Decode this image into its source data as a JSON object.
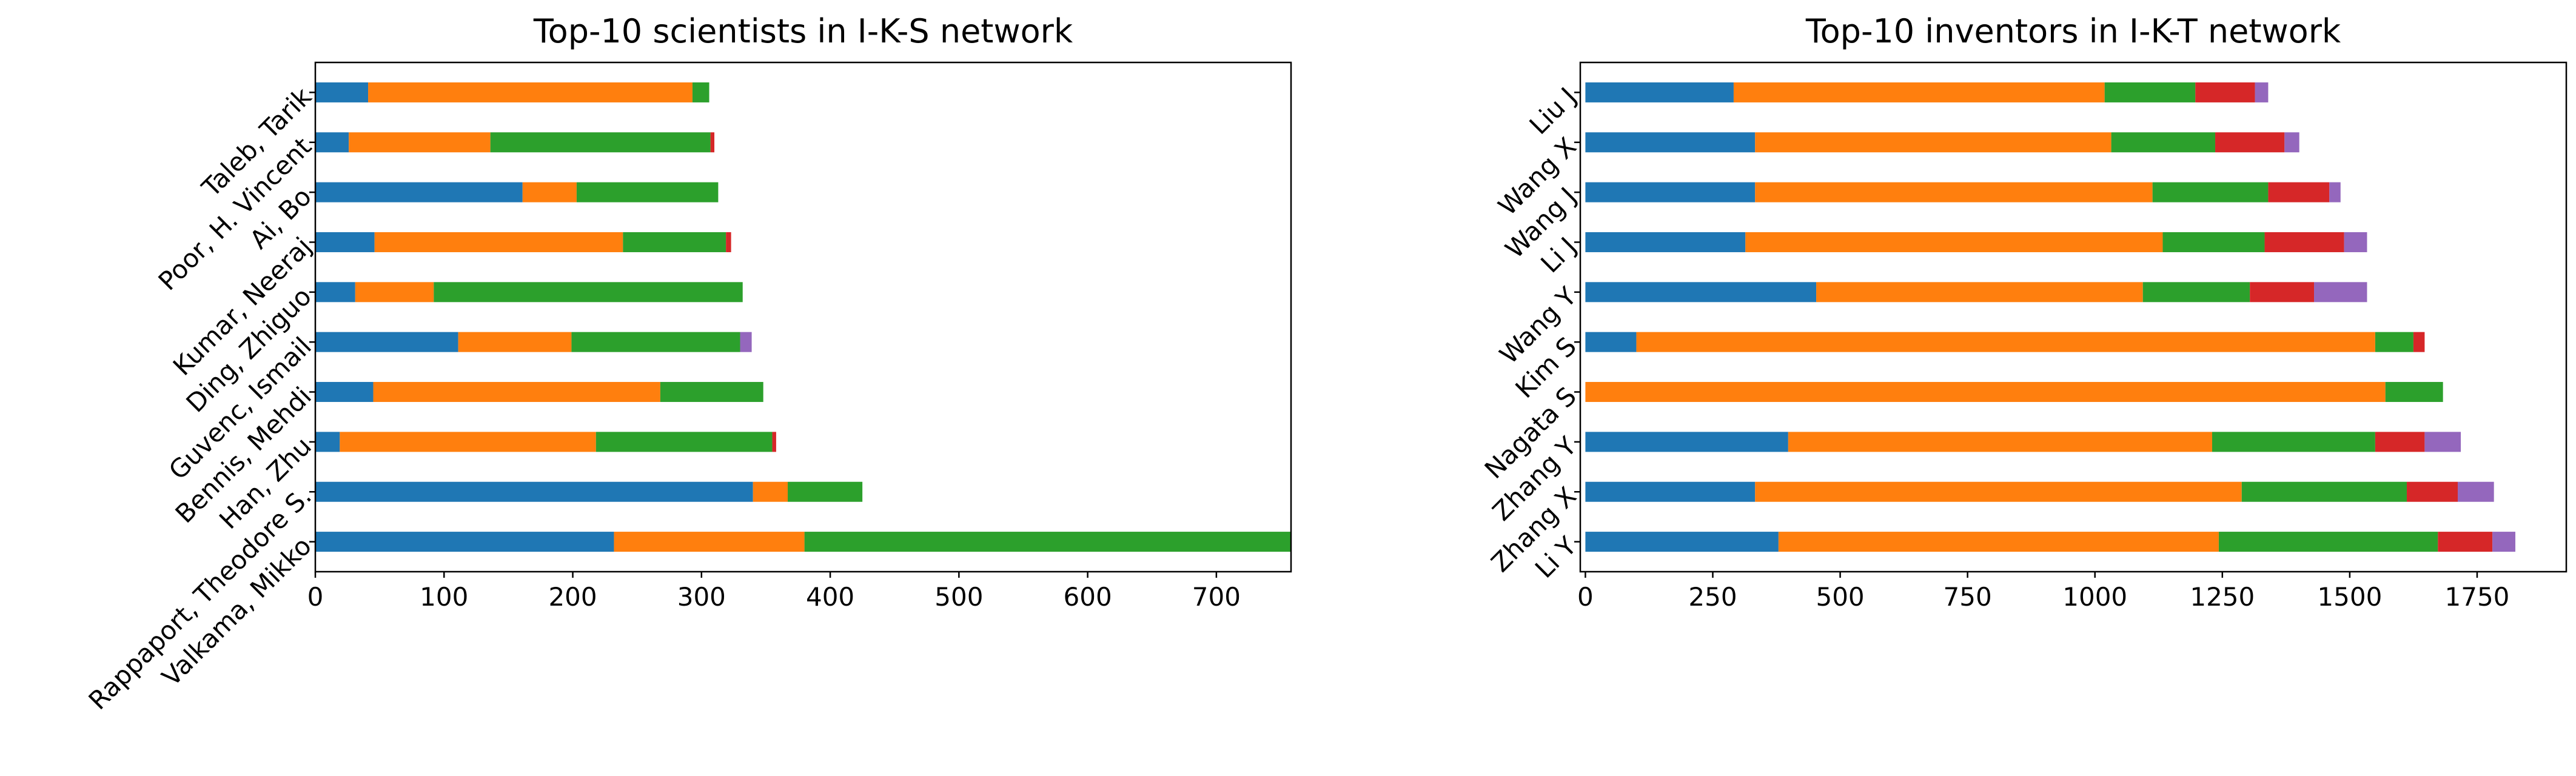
{
  "chart_data": [
    {
      "type": "bar",
      "orientation": "horizontal",
      "stacked": true,
      "title": "Top-10 scientists in I-K-S network",
      "categories": [
        "Valkama, Mikko",
        "Rappaport, Theodore S.",
        "Han, Zhu",
        "Bennis, Mehdi",
        "Guvenc, Ismail",
        "Ding, Zhiguo",
        "Kumar, Neeraj",
        "Ai, Bo",
        "Poor, H. Vincent",
        "Taleb, Tarik"
      ],
      "series": [
        {
          "color": "#1f77b4",
          "values": [
            232,
            340,
            19,
            45,
            111,
            31,
            46,
            161,
            26,
            41
          ]
        },
        {
          "color": "#ff7f0e",
          "values": [
            148,
            27,
            199,
            223,
            88,
            61,
            193,
            42,
            110,
            252
          ]
        },
        {
          "color": "#2ca02c",
          "values": [
            378,
            58,
            137,
            80,
            131,
            240,
            80,
            110,
            171,
            13
          ]
        },
        {
          "color": "#d62728",
          "values": [
            0,
            0,
            3,
            0,
            0,
            0,
            4,
            0,
            3,
            0
          ]
        },
        {
          "color": "#9467bd",
          "values": [
            0,
            0,
            0,
            0,
            9,
            0,
            0,
            0,
            0,
            0
          ]
        }
      ],
      "xlim": [
        0,
        758
      ],
      "xticks": [
        0,
        100,
        200,
        300,
        400,
        500,
        600,
        700
      ]
    },
    {
      "type": "bar",
      "orientation": "horizontal",
      "stacked": true,
      "title": "Top-10 inventors in I-K-T network",
      "categories": [
        "Li Y",
        "Zhang X",
        "Zhang Y",
        "Nagata S",
        "Kim S",
        "Wang Y",
        "Li J",
        "Wang J",
        "Wang X",
        "Liu J"
      ],
      "series": [
        {
          "color": "#1f77b4",
          "values": [
            379,
            333,
            398,
            0,
            100,
            453,
            314,
            333,
            333,
            291
          ]
        },
        {
          "color": "#ff7f0e",
          "values": [
            864,
            955,
            832,
            1570,
            1450,
            641,
            819,
            780,
            699,
            728
          ]
        },
        {
          "color": "#2ca02c",
          "values": [
            430,
            324,
            320,
            113,
            75,
            210,
            200,
            227,
            204,
            178
          ]
        },
        {
          "color": "#d62728",
          "values": [
            107,
            100,
            97,
            0,
            22,
            126,
            156,
            120,
            136,
            117
          ]
        },
        {
          "color": "#9467bd",
          "values": [
            45,
            71,
            71,
            0,
            0,
            104,
            45,
            22,
            29,
            26
          ]
        }
      ],
      "xlim": [
        -10,
        1925
      ],
      "xticks": [
        0,
        250,
        500,
        750,
        1000,
        1250,
        1500,
        1750
      ]
    }
  ]
}
